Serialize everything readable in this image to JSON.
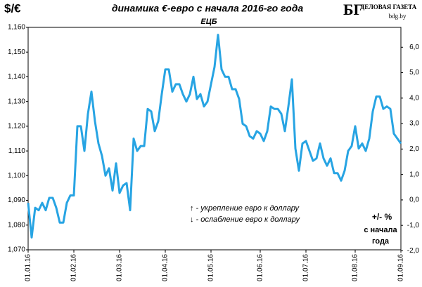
{
  "chart_data": {
    "type": "line",
    "title": "динамика €-евро с начала 2016-го года",
    "subtitle": "ЕЦБ",
    "y_label": "$/€",
    "logo": {
      "mark": "БГ",
      "name": "ДЕЛОВАЯ ГАЗЕТА",
      "site": "bdg.by"
    },
    "annotations": [
      "↑ - укрепление евро к доллару",
      "↓ - ослабление евро к доллару"
    ],
    "y2_label": [
      "+/- %",
      "с начала",
      "года"
    ],
    "categories": [
      "01.01.16",
      null,
      null,
      null,
      null,
      null,
      null,
      null,
      null,
      null,
      null,
      null,
      null,
      "01.02.16",
      null,
      null,
      null,
      null,
      null,
      null,
      null,
      null,
      null,
      null,
      null,
      null,
      "01.03.16",
      null,
      null,
      null,
      null,
      null,
      null,
      null,
      null,
      null,
      null,
      null,
      null,
      "01.04.16",
      null,
      null,
      null,
      null,
      null,
      null,
      null,
      null,
      null,
      null,
      null,
      null,
      "01.05.16",
      null,
      null,
      null,
      null,
      null,
      null,
      null,
      null,
      null,
      null,
      null,
      null,
      null,
      "01.06.16",
      null,
      null,
      null,
      null,
      null,
      null,
      null,
      null,
      null,
      null,
      null,
      null,
      "01.07.16",
      null,
      null,
      null,
      null,
      null,
      null,
      null,
      null,
      null,
      null,
      null,
      null,
      null,
      "01.08.16",
      null,
      null,
      null,
      null,
      null,
      null,
      null,
      null,
      null,
      null,
      null,
      null,
      "01.09.16"
    ],
    "series": [
      {
        "color": "#27a4e3",
        "values": [
          1.089,
          1.075,
          1.087,
          1.086,
          1.089,
          1.086,
          1.091,
          1.091,
          1.087,
          1.081,
          1.081,
          1.089,
          1.092,
          1.092,
          1.12,
          1.12,
          1.11,
          1.125,
          1.134,
          1.122,
          1.113,
          1.108,
          1.1,
          1.103,
          1.094,
          1.105,
          1.093,
          1.096,
          1.097,
          1.086,
          1.115,
          1.11,
          1.112,
          1.112,
          1.127,
          1.126,
          1.118,
          1.122,
          1.133,
          1.143,
          1.143,
          1.134,
          1.137,
          1.137,
          1.133,
          1.13,
          1.133,
          1.14,
          1.131,
          1.133,
          1.128,
          1.13,
          1.137,
          1.144,
          1.157,
          1.143,
          1.14,
          1.14,
          1.135,
          1.135,
          1.131,
          1.121,
          1.12,
          1.116,
          1.115,
          1.118,
          1.117,
          1.114,
          1.118,
          1.128,
          1.127,
          1.127,
          1.125,
          1.118,
          1.128,
          1.139,
          1.111,
          1.102,
          1.113,
          1.114,
          1.11,
          1.106,
          1.107,
          1.113,
          1.107,
          1.104,
          1.107,
          1.101,
          1.101,
          1.098,
          1.102,
          1.11,
          1.112,
          1.12,
          1.111,
          1.113,
          1.11,
          1.115,
          1.126,
          1.132,
          1.132,
          1.127,
          1.128,
          1.127,
          1.117,
          1.115,
          1.113
        ]
      }
    ],
    "ylim": [
      1.07,
      1.16
    ],
    "yticks": [
      {
        "value": 1.07,
        "label": "1,070"
      },
      {
        "value": 1.08,
        "label": "1,080"
      },
      {
        "value": 1.09,
        "label": "1,090"
      },
      {
        "value": 1.1,
        "label": "1,100"
      },
      {
        "value": 1.11,
        "label": "1,110"
      },
      {
        "value": 1.12,
        "label": "1,120"
      },
      {
        "value": 1.13,
        "label": "1,130"
      },
      {
        "value": 1.14,
        "label": "1,140"
      },
      {
        "value": 1.15,
        "label": "1,150"
      },
      {
        "value": 1.16,
        "label": "1,160"
      }
    ],
    "y2lim": [
      -1.96,
      6.78
    ],
    "y2ticks": [
      {
        "value": -2,
        "label": "-2,0"
      },
      {
        "value": -1,
        "label": "-1,0"
      },
      {
        "value": 0,
        "label": "0,0"
      },
      {
        "value": 1,
        "label": "1,0"
      },
      {
        "value": 2,
        "label": "2,0"
      },
      {
        "value": 3,
        "label": "3,0"
      },
      {
        "value": 4,
        "label": "4,0"
      },
      {
        "value": 5,
        "label": "5,0"
      },
      {
        "value": 6,
        "label": "6,0"
      }
    ],
    "grid": false
  }
}
